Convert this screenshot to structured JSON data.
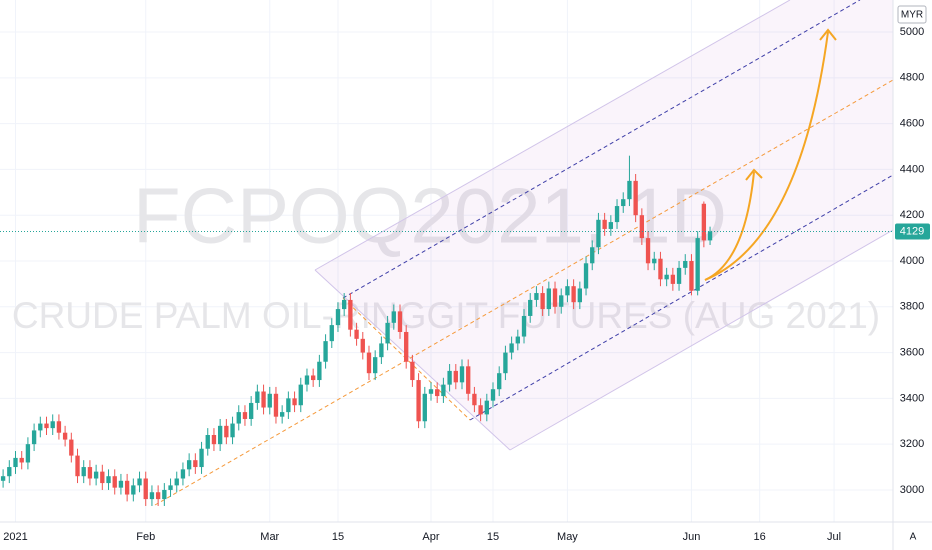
{
  "chart_data": {
    "type": "candlestick",
    "symbol": "FCPOQ2021, 1D",
    "description": "CRUDE PALM OIL-RINGGIT FUTURES (AUG 2021)",
    "currency": "MYR",
    "scale_mode": "A",
    "last_price": 4129,
    "up_color": "#26a69a",
    "down_color": "#ef5350",
    "grid": true,
    "ylim": [
      2860,
      5140
    ],
    "yticks": [
      3000,
      3200,
      3400,
      3600,
      3800,
      4000,
      4200,
      4400,
      4600,
      4800,
      5000
    ],
    "xlim": [
      -0.5,
      143.5
    ],
    "xticks": [
      {
        "value": 2,
        "label": "2021"
      },
      {
        "value": 23,
        "label": "Feb"
      },
      {
        "value": 43,
        "label": "Mar"
      },
      {
        "value": 54,
        "label": "15"
      },
      {
        "value": 69,
        "label": "Apr"
      },
      {
        "value": 79,
        "label": "15"
      },
      {
        "value": 91,
        "label": "May"
      },
      {
        "value": 111,
        "label": "Jun"
      },
      {
        "value": 122,
        "label": "16"
      },
      {
        "value": 134,
        "label": "Jul"
      }
    ],
    "open": [
      3040,
      3060,
      3100,
      3140,
      3120,
      3200,
      3260,
      3290,
      3270,
      3300,
      3250,
      3220,
      3150,
      3060,
      3100,
      3050,
      3080,
      3030,
      3060,
      3010,
      3040,
      2980,
      3020,
      3050,
      2960,
      2990,
      2960,
      3000,
      3020,
      3050,
      3090,
      3130,
      3100,
      3180,
      3240,
      3200,
      3280,
      3230,
      3290,
      3340,
      3310,
      3380,
      3430,
      3360,
      3420,
      3320,
      3340,
      3400,
      3370,
      3460,
      3500,
      3480,
      3560,
      3650,
      3720,
      3790,
      3830,
      3700,
      3660,
      3600,
      3510,
      3580,
      3640,
      3730,
      3780,
      3690,
      3560,
      3480,
      3300,
      3420,
      3440,
      3410,
      3460,
      3520,
      3470,
      3540,
      3420,
      3370,
      3330,
      3390,
      3440,
      3510,
      3600,
      3640,
      3670,
      3760,
      3830,
      3860,
      3790,
      3880,
      3800,
      3850,
      3890,
      3820,
      3880,
      3990,
      4060,
      4180,
      4140,
      4170,
      4240,
      4270,
      4350,
      4200,
      4100,
      3990,
      4010,
      3920,
      3940,
      3900,
      3970,
      4000,
      3870,
      4250,
      4090
    ],
    "high": [
      3090,
      3130,
      3170,
      3170,
      3230,
      3290,
      3320,
      3320,
      3330,
      3330,
      3280,
      3250,
      3180,
      3130,
      3130,
      3110,
      3110,
      3090,
      3090,
      3070,
      3070,
      3050,
      3080,
      3080,
      3020,
      3020,
      3030,
      3050,
      3080,
      3120,
      3160,
      3160,
      3210,
      3270,
      3270,
      3310,
      3310,
      3320,
      3370,
      3370,
      3410,
      3460,
      3460,
      3450,
      3450,
      3370,
      3430,
      3430,
      3490,
      3530,
      3530,
      3590,
      3680,
      3750,
      3820,
      3860,
      3860,
      3730,
      3690,
      3630,
      3610,
      3670,
      3760,
      3810,
      3810,
      3720,
      3590,
      3510,
      3450,
      3470,
      3470,
      3490,
      3550,
      3550,
      3570,
      3570,
      3450,
      3400,
      3420,
      3470,
      3540,
      3630,
      3670,
      3700,
      3790,
      3860,
      3890,
      3890,
      3910,
      3910,
      3880,
      3920,
      3920,
      3910,
      4020,
      4090,
      4210,
      4210,
      4200,
      4270,
      4300,
      4460,
      4380,
      4230,
      4130,
      4040,
      4040,
      3970,
      3970,
      4000,
      4030,
      4030,
      4130,
      4260,
      4150
    ],
    "low": [
      3010,
      3030,
      3070,
      3090,
      3090,
      3170,
      3230,
      3240,
      3240,
      3220,
      3190,
      3120,
      3030,
      3030,
      3020,
      3020,
      3000,
      3000,
      2980,
      2980,
      2950,
      2950,
      2990,
      2930,
      2930,
      2930,
      2930,
      2970,
      2990,
      3020,
      3060,
      3070,
      3070,
      3150,
      3170,
      3170,
      3200,
      3200,
      3260,
      3280,
      3280,
      3350,
      3330,
      3330,
      3290,
      3290,
      3310,
      3340,
      3340,
      3430,
      3450,
      3450,
      3530,
      3620,
      3690,
      3760,
      3670,
      3630,
      3570,
      3480,
      3480,
      3550,
      3610,
      3700,
      3660,
      3530,
      3450,
      3270,
      3270,
      3390,
      3380,
      3380,
      3430,
      3440,
      3440,
      3390,
      3340,
      3300,
      3300,
      3360,
      3410,
      3480,
      3570,
      3610,
      3640,
      3730,
      3800,
      3760,
      3760,
      3770,
      3770,
      3820,
      3790,
      3790,
      3850,
      3960,
      4030,
      4110,
      4110,
      4140,
      4210,
      4240,
      4170,
      4070,
      3960,
      3960,
      3890,
      3890,
      3870,
      3870,
      3940,
      3850,
      3850,
      4060,
      4070
    ],
    "close": [
      3060,
      3100,
      3140,
      3120,
      3200,
      3260,
      3290,
      3270,
      3300,
      3250,
      3220,
      3150,
      3060,
      3100,
      3050,
      3080,
      3030,
      3060,
      3010,
      3040,
      2980,
      3020,
      3050,
      2960,
      2990,
      2960,
      3000,
      3020,
      3050,
      3090,
      3130,
      3100,
      3180,
      3240,
      3200,
      3280,
      3230,
      3290,
      3340,
      3310,
      3380,
      3430,
      3360,
      3420,
      3320,
      3340,
      3400,
      3370,
      3460,
      3500,
      3480,
      3560,
      3650,
      3720,
      3790,
      3830,
      3700,
      3660,
      3600,
      3510,
      3580,
      3640,
      3730,
      3780,
      3690,
      3560,
      3480,
      3300,
      3420,
      3440,
      3410,
      3460,
      3520,
      3470,
      3540,
      3420,
      3370,
      3330,
      3390,
      3440,
      3510,
      3600,
      3640,
      3670,
      3760,
      3830,
      3860,
      3790,
      3880,
      3800,
      3850,
      3890,
      3820,
      3880,
      3990,
      4060,
      4180,
      4140,
      4170,
      4240,
      4270,
      4350,
      4200,
      4100,
      3990,
      4010,
      3920,
      3940,
      3900,
      3970,
      4000,
      3870,
      4100,
      4090,
      4129
    ]
  }
}
